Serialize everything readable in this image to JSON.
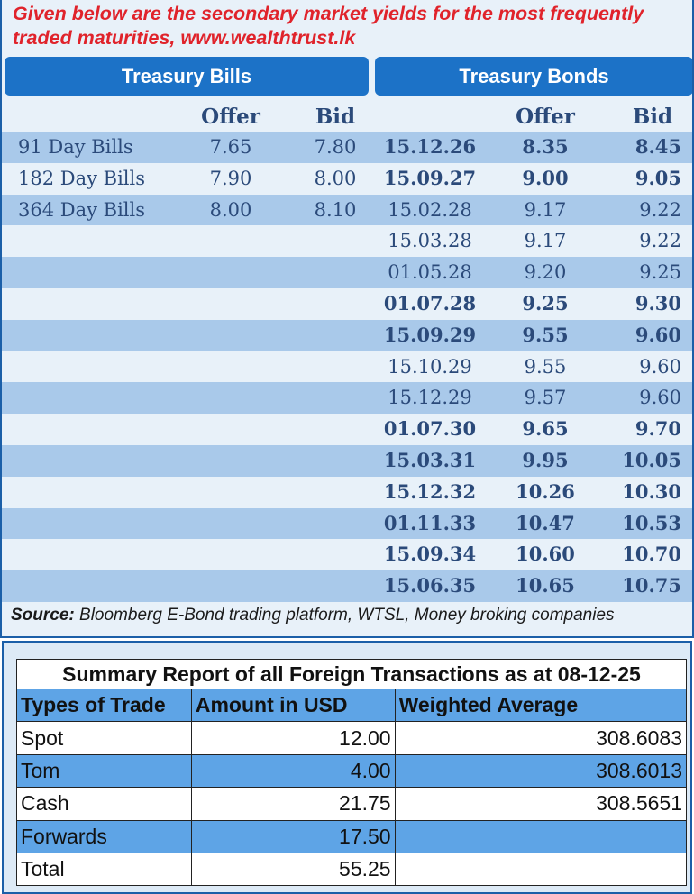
{
  "headline": {
    "line1": "Given below are the secondary market yields for the most frequently",
    "line2": "traded maturities, www.wealthtrust.lk"
  },
  "bills": {
    "header": "Treasury Bills",
    "col_offer": "Offer",
    "col_bid": "Bid",
    "rows": [
      {
        "name": "91 Day Bills",
        "offer": "7.65",
        "bid": "7.80"
      },
      {
        "name": "182 Day Bills",
        "offer": "7.90",
        "bid": "8.00"
      },
      {
        "name": "364 Day Bills",
        "offer": "8.00",
        "bid": "8.10"
      }
    ]
  },
  "bonds": {
    "header": "Treasury Bonds",
    "col_offer": "Offer",
    "col_bid": "Bid",
    "rows": [
      {
        "maturity": "15.12.26",
        "offer": "8.35",
        "bid": "8.45",
        "bold": true
      },
      {
        "maturity": "15.09.27",
        "offer": "9.00",
        "bid": "9.05",
        "bold": true
      },
      {
        "maturity": "15.02.28",
        "offer": "9.17",
        "bid": "9.22",
        "bold": false
      },
      {
        "maturity": "15.03.28",
        "offer": "9.17",
        "bid": "9.22",
        "bold": false
      },
      {
        "maturity": "01.05.28",
        "offer": "9.20",
        "bid": "9.25",
        "bold": false
      },
      {
        "maturity": "01.07.28",
        "offer": "9.25",
        "bid": "9.30",
        "bold": true
      },
      {
        "maturity": "15.09.29",
        "offer": "9.55",
        "bid": "9.60",
        "bold": true
      },
      {
        "maturity": "15.10.29",
        "offer": "9.55",
        "bid": "9.60",
        "bold": false
      },
      {
        "maturity": "15.12.29",
        "offer": "9.57",
        "bid": "9.60",
        "bold": false
      },
      {
        "maturity": "01.07.30",
        "offer": "9.65",
        "bid": "9.70",
        "bold": true
      },
      {
        "maturity": "15.03.31",
        "offer": "9.95",
        "bid": "10.05",
        "bold": true
      },
      {
        "maturity": "15.12.32",
        "offer": "10.26",
        "bid": "10.30",
        "bold": true
      },
      {
        "maturity": "01.11.33",
        "offer": "10.47",
        "bid": "10.53",
        "bold": true
      },
      {
        "maturity": "15.09.34",
        "offer": "10.60",
        "bid": "10.70",
        "bold": true
      },
      {
        "maturity": "15.06.35",
        "offer": "10.65",
        "bid": "10.75",
        "bold": true
      }
    ]
  },
  "source": {
    "label": "Source:",
    "text": " Bloomberg E-Bond trading platform, WTSL, Money broking companies"
  },
  "fx_summary": {
    "title": "Summary Report of all Foreign Transactions as at 08-12-25",
    "headers": [
      "Types of Trade",
      "Amount in USD",
      "Weighted Average"
    ],
    "rows": [
      {
        "type": "Spot",
        "amount": "12.00",
        "wavg": "308.6083"
      },
      {
        "type": "Tom",
        "amount": "4.00",
        "wavg": "308.6013"
      },
      {
        "type": "Cash",
        "amount": "21.75",
        "wavg": "308.5651"
      },
      {
        "type": "Forwards",
        "amount": "17.50",
        "wavg": ""
      },
      {
        "type": "Total",
        "amount": "55.25",
        "wavg": ""
      }
    ]
  },
  "colors": {
    "headline_red": "#e0232b",
    "band_blue": "#1c72c7",
    "row_shade": "#a9c9ea",
    "text_navy": "#2b4a7a",
    "fx_header_blue": "#5ea4e6"
  }
}
